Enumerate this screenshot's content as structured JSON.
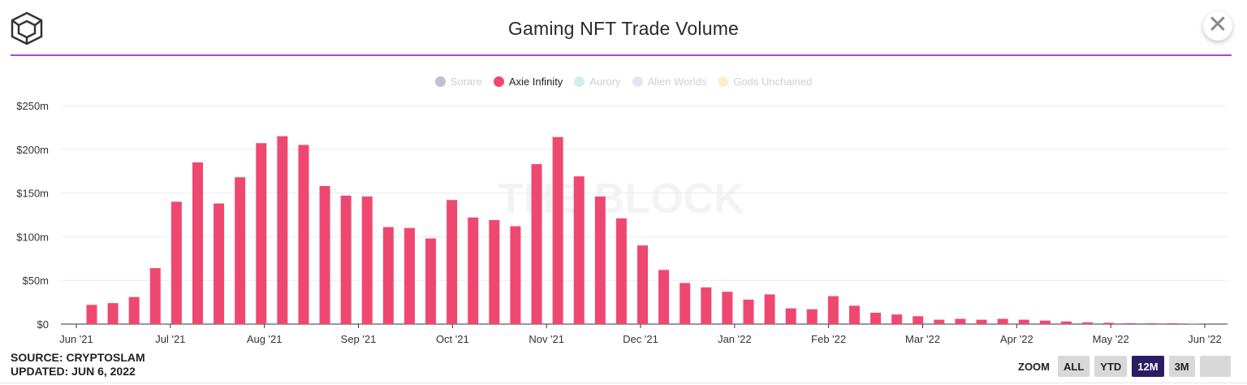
{
  "header": {
    "title": "Gaming NFT Trade Volume",
    "close_label": "✕"
  },
  "logo": {
    "icon": "the-block-cube-logo-icon"
  },
  "legend": [
    {
      "label": "Sorare",
      "color": "#c3bfd0",
      "active": false
    },
    {
      "label": "Axie Infinity",
      "color": "#ef4870",
      "active": true
    },
    {
      "label": "Aurory",
      "color": "#cfeeee",
      "active": false
    },
    {
      "label": "Alien Worlds",
      "color": "#e6e4f3",
      "active": false
    },
    {
      "label": "Gods Unchained",
      "color": "#fdf0c8",
      "active": false
    }
  ],
  "watermark": "THE BLOCK",
  "footer": {
    "source": "SOURCE: CRYPTOSLAM",
    "updated": "UPDATED: JUN 6, 2022"
  },
  "zoom": {
    "label": "ZOOM",
    "buttons": [
      {
        "label": "ALL",
        "selected": false
      },
      {
        "label": "YTD",
        "selected": false
      },
      {
        "label": "12M",
        "selected": true
      },
      {
        "label": "3M",
        "selected": false
      },
      {
        "label": "",
        "selected": false
      }
    ]
  },
  "chart_data": {
    "type": "bar",
    "title": "Gaming NFT Trade Volume",
    "series": [
      {
        "name": "Axie Infinity",
        "color": "#ef4870",
        "values": [
          22,
          24,
          31,
          64,
          140,
          185,
          138,
          168,
          207,
          215,
          205,
          158,
          147,
          146,
          111,
          110,
          98,
          142,
          122,
          119,
          112,
          183,
          214,
          169,
          146,
          121,
          90,
          62,
          47,
          42,
          37,
          28,
          34,
          18,
          17,
          32,
          21,
          13,
          11,
          9,
          5,
          6,
          5,
          6,
          5,
          4,
          3,
          2,
          1.5,
          1,
          1,
          1,
          0.5
        ]
      }
    ],
    "x_tick_labels": [
      "Jun '21",
      "Jul '21",
      "Aug '21",
      "Sep '21",
      "Oct '21",
      "Nov '21",
      "Dec '21",
      "Jan '22",
      "Feb '22",
      "Mar '22",
      "Apr '22",
      "May '22",
      "Jun '22"
    ],
    "y_tick_labels": [
      "$0",
      "$50m",
      "$100m",
      "$150m",
      "$200m",
      "$250m"
    ],
    "ylim": [
      0,
      250
    ],
    "grid": true,
    "legend_position": "top-center"
  }
}
